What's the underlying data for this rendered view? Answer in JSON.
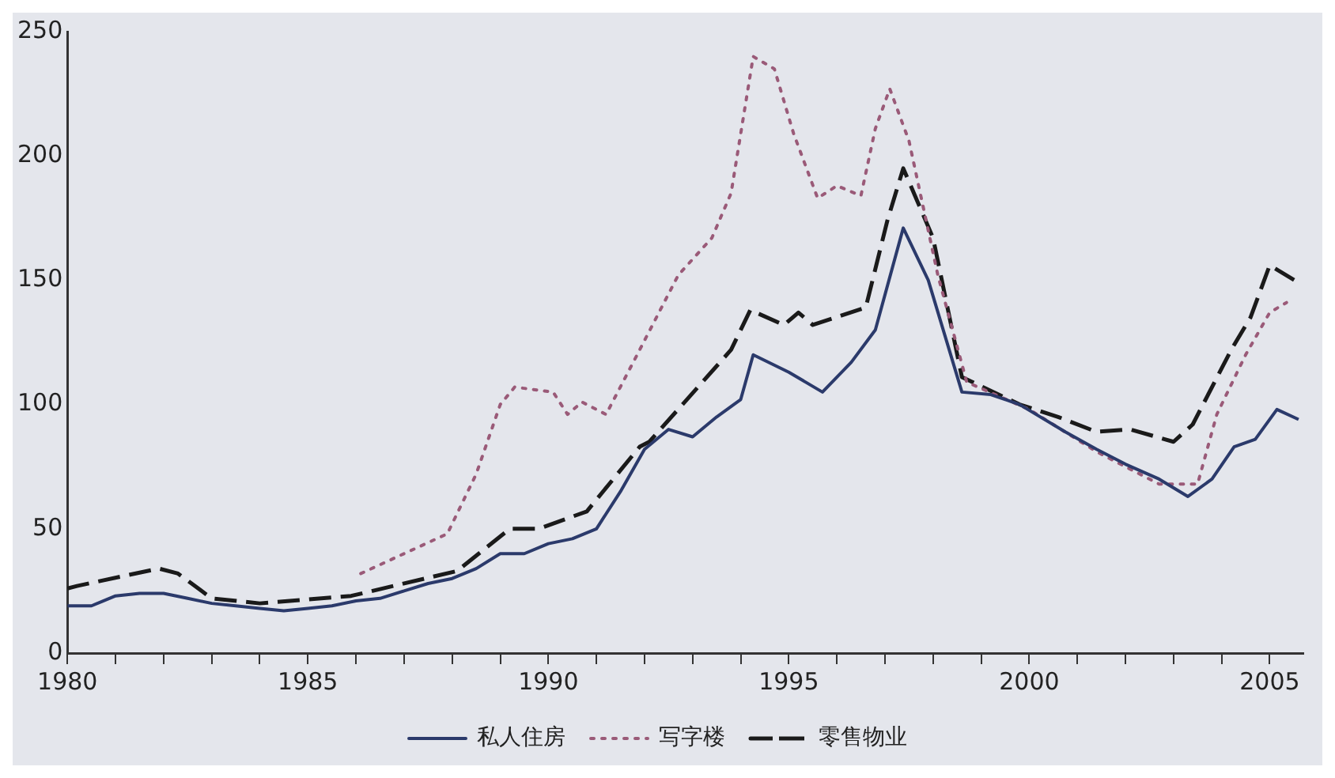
{
  "chart_data": {
    "type": "line",
    "xlim": [
      1980,
      2005.7
    ],
    "ylim": [
      0,
      250
    ],
    "xticks": [
      1980,
      {
        "value": 1981,
        "label": null
      },
      {
        "value": 1982,
        "label": null
      },
      {
        "value": 1983,
        "label": null
      },
      {
        "value": 1984,
        "label": null
      },
      1985,
      {
        "value": 1986,
        "label": null
      },
      {
        "value": 1987,
        "label": null
      },
      {
        "value": 1988,
        "label": null
      },
      {
        "value": 1989,
        "label": null
      },
      1990,
      {
        "value": 1991,
        "label": null
      },
      {
        "value": 1992,
        "label": null
      },
      {
        "value": 1993,
        "label": null
      },
      {
        "value": 1994,
        "label": null
      },
      1995,
      {
        "value": 1996,
        "label": null
      },
      {
        "value": 1997,
        "label": null
      },
      {
        "value": 1998,
        "label": null
      },
      {
        "value": 1999,
        "label": null
      },
      2000,
      {
        "value": 2001,
        "label": null
      },
      {
        "value": 2002,
        "label": null
      },
      {
        "value": 2003,
        "label": null
      },
      {
        "value": 2004,
        "label": null
      },
      2005
    ],
    "yticks": [
      0,
      50,
      100,
      150,
      200,
      250
    ],
    "grid": false,
    "legend": "bottom",
    "marker": "none",
    "series": [
      {
        "name": "私人住房",
        "color": "#2b3a6b",
        "line_style": "solid",
        "x": [
          1980,
          1980.5,
          1981,
          1981.5,
          1982,
          1982.5,
          1983,
          1983.5,
          1984,
          1984.5,
          1985,
          1985.5,
          1986,
          1986.5,
          1987,
          1987.5,
          1988,
          1988.5,
          1989,
          1989.5,
          1990,
          1990.5,
          1991,
          1991.5,
          1992,
          1992.5,
          1993,
          1993.5,
          1994,
          1994.26,
          1995,
          1995.7,
          1996.3,
          1996.8,
          1997.38,
          1997.9,
          1998.6,
          1999.2,
          1999.8,
          2000.75,
          2001.4,
          2002,
          2002.7,
          2003.3,
          2003.8,
          2004.26,
          2004.7,
          2005.15,
          2005.6
        ],
        "values": [
          19,
          19,
          23,
          24,
          24,
          22,
          20,
          19,
          18,
          17,
          18,
          19,
          21,
          22,
          25,
          28,
          30,
          34,
          40,
          40,
          44,
          46,
          50,
          65,
          82,
          90,
          87,
          95,
          102,
          120,
          113,
          105,
          117,
          130,
          171,
          150,
          105,
          104,
          100,
          89,
          82,
          76,
          70,
          63,
          70,
          83,
          86,
          98,
          94
        ]
      },
      {
        "name": "写字楼",
        "color": "#9a5a78",
        "line_style": "dotted",
        "x": [
          1986.1,
          1987,
          1987.9,
          1988.5,
          1989,
          1989.3,
          1990.1,
          1990.4,
          1990.7,
          1991.2,
          1991.9,
          1992.7,
          1993.4,
          1993.8,
          1994.26,
          1994.7,
          1995.1,
          1995.6,
          1996,
          1996.5,
          1996.8,
          1997.1,
          1997.5,
          1998.1,
          1998.7,
          2000,
          2001.4,
          2002.7,
          2003.5,
          2003.9,
          2004.5,
          2005,
          2005.35
        ],
        "values": [
          32,
          40,
          48,
          72,
          100,
          107,
          105,
          96,
          101,
          96,
          122,
          152,
          167,
          185,
          240,
          235,
          209,
          183,
          188,
          184,
          211,
          227,
          206,
          152,
          109,
          98,
          81,
          68,
          68,
          96,
          120,
          137,
          141
        ]
      },
      {
        "name": "零售物业",
        "color": "#1a1a1a",
        "line_style": "dashed",
        "x": [
          1980,
          1980.2,
          1981.9,
          1982.3,
          1983,
          1984,
          1985.9,
          1988.1,
          1989.2,
          1989.8,
          1990.8,
          1991.9,
          1992.1,
          1993.8,
          1994.2,
          1994.9,
          1995.2,
          1995.5,
          1996.6,
          1997.05,
          1997.38,
          1998,
          1998.6,
          1999.8,
          2000.6,
          2001.4,
          2002.1,
          2003,
          2003.4,
          2004.2,
          2004.6,
          2005,
          2005.6
        ],
        "values": [
          26,
          27,
          34,
          32,
          22,
          20,
          23,
          33,
          50,
          50,
          57,
          83,
          85,
          122,
          138,
          132,
          137,
          132,
          139,
          174,
          195,
          167,
          111,
          100,
          95,
          89,
          90,
          85,
          92,
          122,
          135,
          156,
          149
        ]
      }
    ]
  }
}
